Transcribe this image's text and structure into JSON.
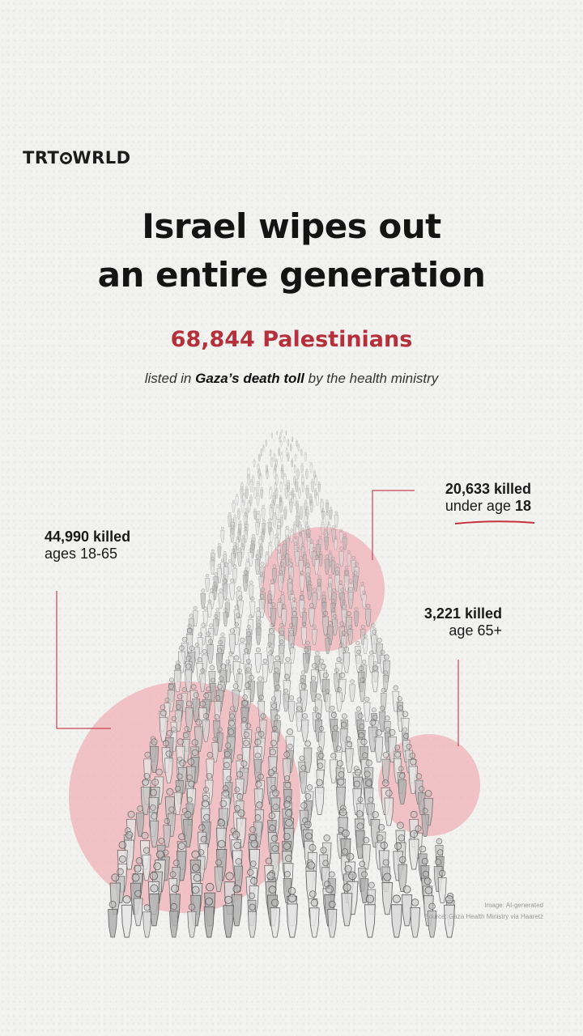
{
  "brand": {
    "logo_pre": "TRT",
    "logo_post": "W",
    "logo_rest": "RLD"
  },
  "headline": {
    "line1": "Israel wipes out",
    "line2": "an entire generation"
  },
  "total": {
    "count_text": "68,844 Palestinians"
  },
  "subtitle": {
    "prefix": "listed in ",
    "emphasis": "Gaza’s death toll",
    "suffix": " by the health ministry"
  },
  "groups": {
    "under18": {
      "count": "20,633 killed",
      "desc_prefix": "under age ",
      "desc_bold": "18",
      "value": 20633
    },
    "adults": {
      "count": "44,990 killed",
      "desc": "ages 18-65",
      "value": 44990
    },
    "elderly": {
      "count": "3,221 killed",
      "desc": "age 65+",
      "value": 3221
    }
  },
  "credits": {
    "image": "Image: AI-generated",
    "source": "Source: Gaza Health Ministry via Haaretz"
  },
  "colors": {
    "accent": "#b5303a",
    "circle_fill": "#efb0b5",
    "background": "#f2f2f1"
  },
  "icons": {
    "crowd": "crowd-illustration",
    "logo_o": "trt-world-o-icon"
  }
}
